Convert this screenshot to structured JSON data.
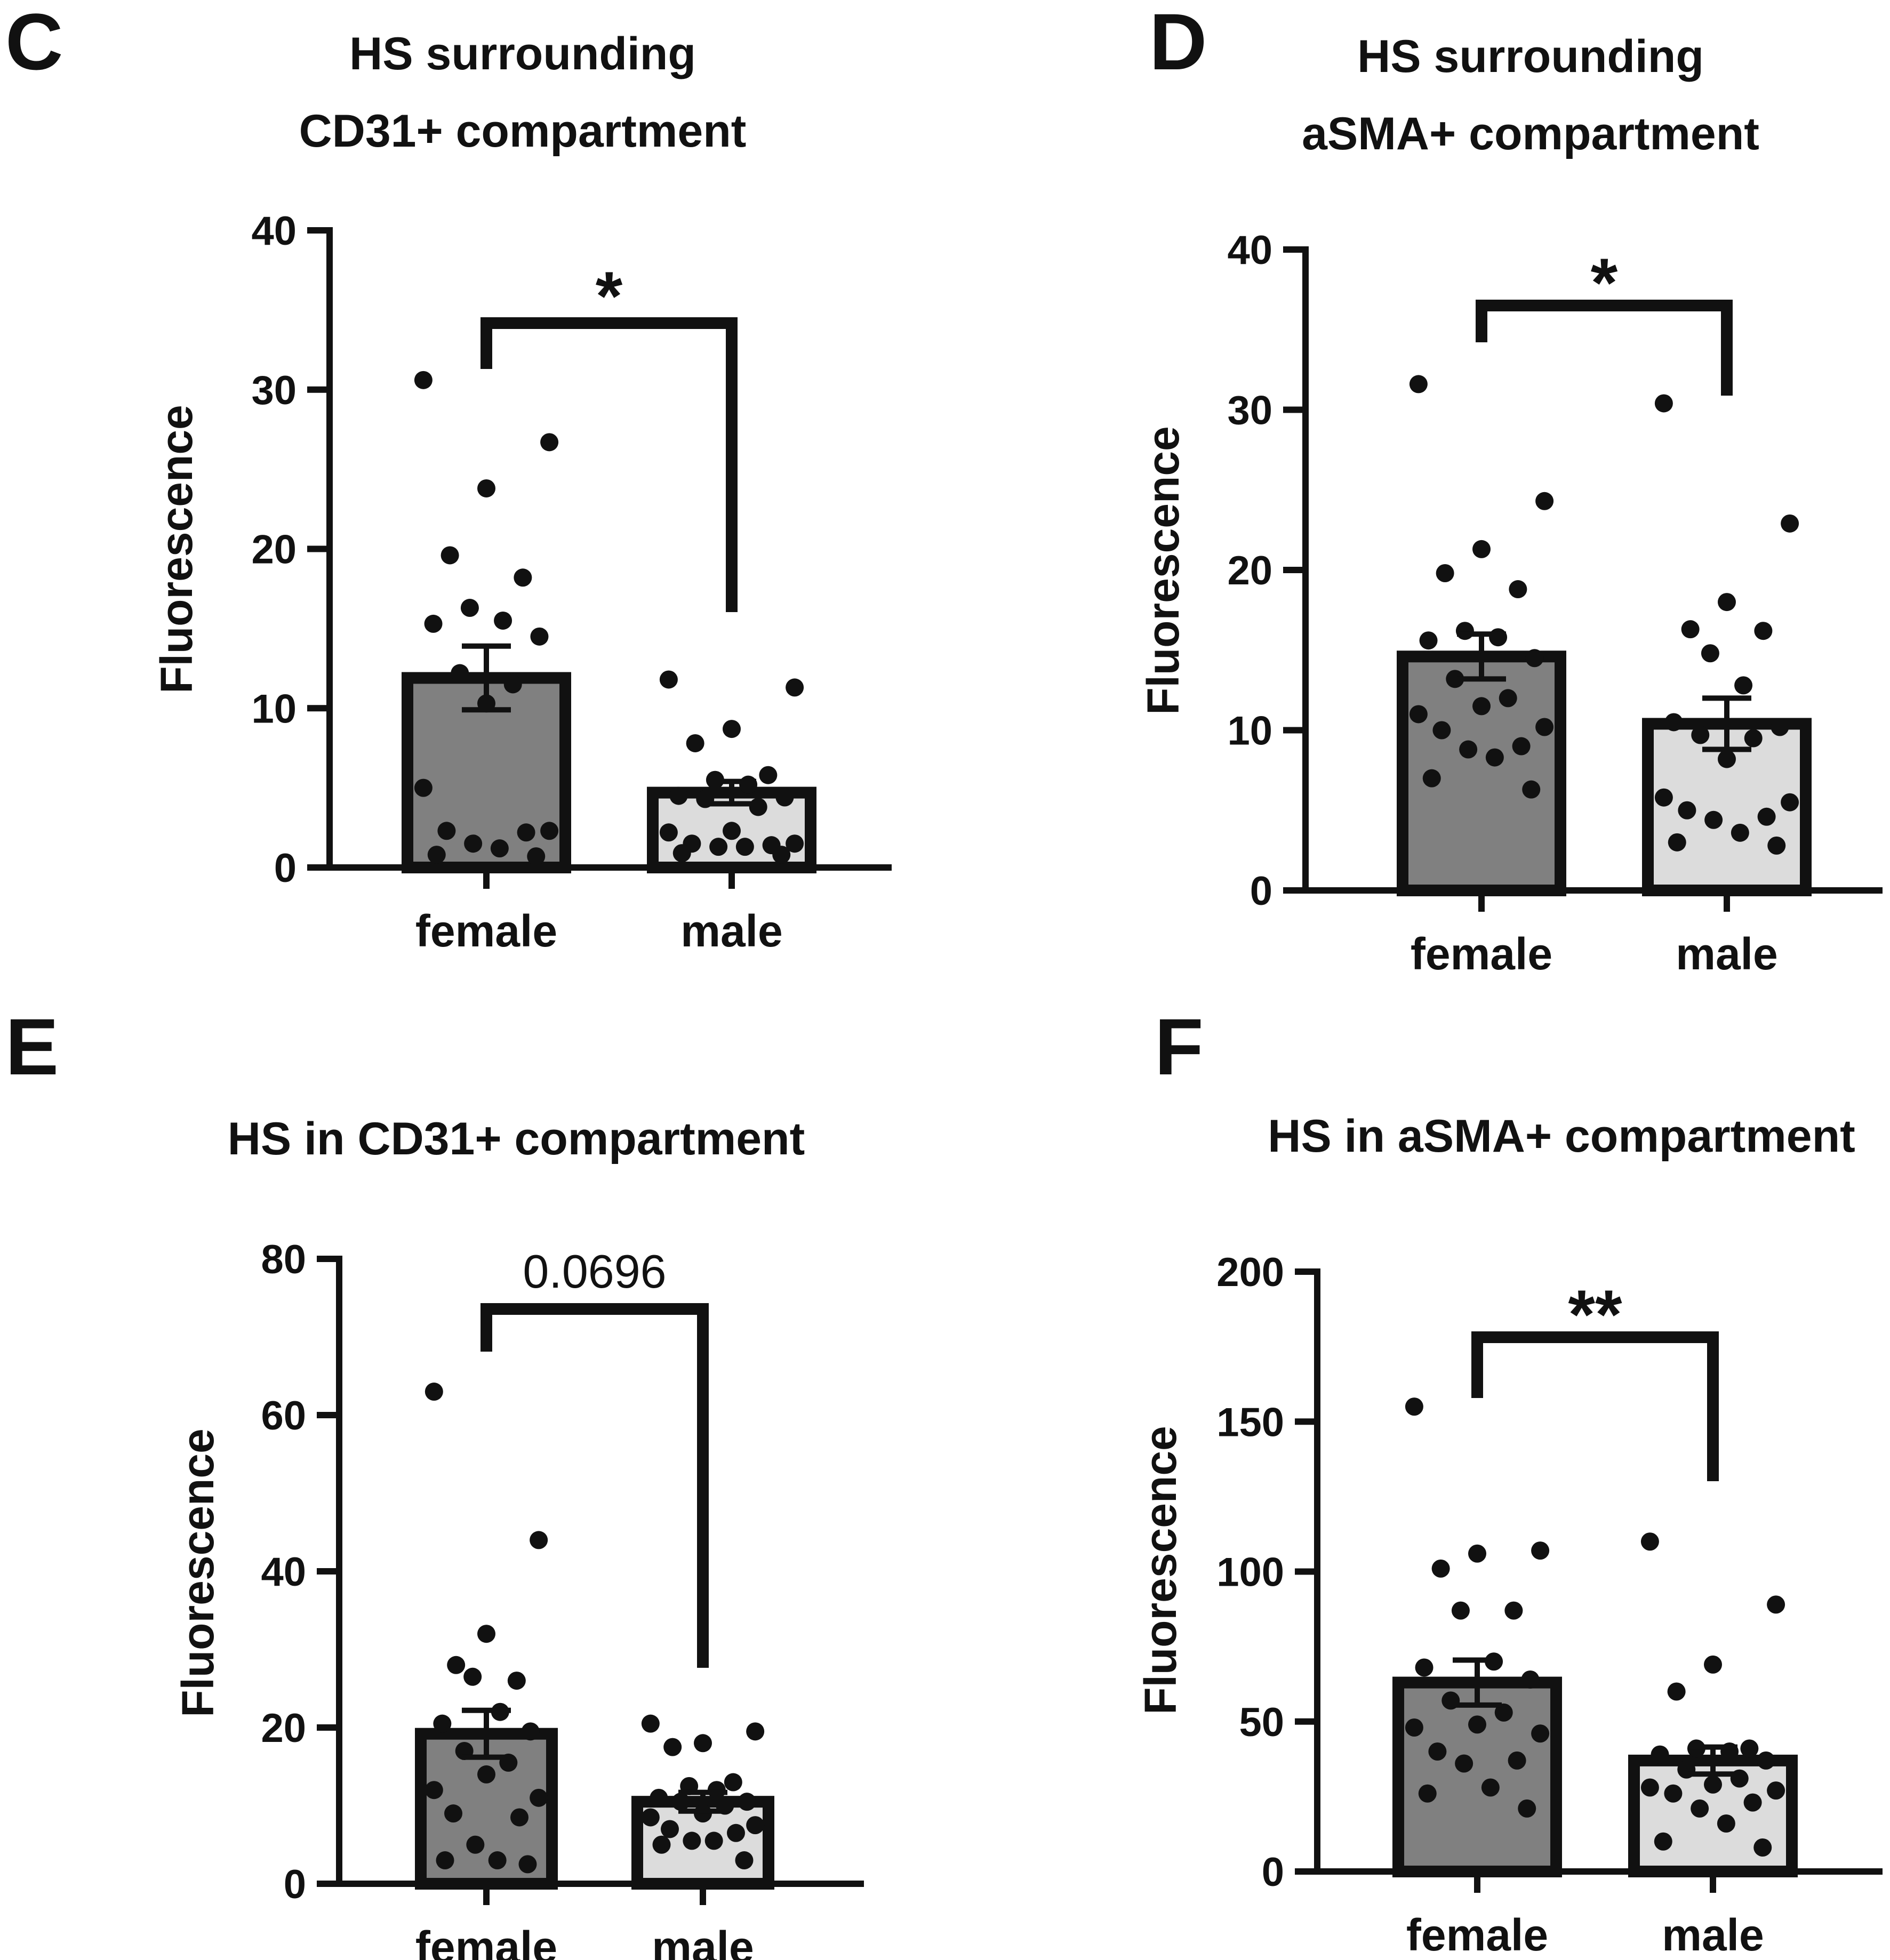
{
  "chart_data": [
    {
      "panel": "C",
      "type": "bar",
      "title": [
        "HS surrounding",
        "CD31+ compartment"
      ],
      "xlabel": "",
      "ylabel": "Fluorescence",
      "ylim": [
        0,
        40
      ],
      "yticks": [
        0,
        10,
        20,
        30,
        40
      ],
      "categories": [
        "female",
        "male"
      ],
      "values": [
        11.9,
        4.7
      ],
      "sem": [
        2.0,
        0.7
      ],
      "bar_colors": [
        "#808080",
        "#dcdcdc"
      ],
      "points": [
        [
          30.6,
          26.7,
          23.8,
          19.6,
          18.2,
          16.3,
          15.5,
          15.3,
          14.5,
          12.2,
          11.5,
          10.3,
          5.0,
          2.3,
          2.3,
          2.2,
          1.5,
          1.2,
          0.8,
          0.7
        ],
        [
          11.8,
          11.3,
          8.7,
          7.8,
          5.8,
          5.5,
          5.2,
          4.5,
          4.4,
          4.3,
          3.8,
          2.3,
          2.2,
          1.5,
          1.5,
          1.4,
          1.3,
          1.3,
          0.9,
          0.8
        ]
      ],
      "significance": "*"
    },
    {
      "panel": "D",
      "type": "bar",
      "title": [
        "HS surrounding",
        "aSMA+ compartment"
      ],
      "xlabel": "",
      "ylabel": "Fluorescence",
      "ylim": [
        0,
        40
      ],
      "yticks": [
        0,
        10,
        20,
        30,
        40
      ],
      "categories": [
        "female",
        "male"
      ],
      "values": [
        14.6,
        10.4
      ],
      "sem": [
        1.4,
        1.6
      ],
      "bar_colors": [
        "#808080",
        "#dcdcdc"
      ],
      "points": [
        [
          31.6,
          24.3,
          21.3,
          19.8,
          18.8,
          16.2,
          15.8,
          15.6,
          14.5,
          13.2,
          12.0,
          11.5,
          11.0,
          10.2,
          10.0,
          9.0,
          8.8,
          8.3,
          7.0,
          6.3
        ],
        [
          30.4,
          22.9,
          18.0,
          16.3,
          16.2,
          14.8,
          12.8,
          10.5,
          10.2,
          9.7,
          9.5,
          8.2,
          5.8,
          5.5,
          5.0,
          4.6,
          4.4,
          3.6,
          3.0,
          2.8
        ]
      ],
      "significance": "*"
    },
    {
      "panel": "E",
      "type": "bar",
      "title": [
        "HS in CD31+ compartment"
      ],
      "xlabel": "",
      "ylabel": "Fluorescence",
      "ylim": [
        0,
        80
      ],
      "yticks": [
        0,
        20,
        40,
        60,
        80
      ],
      "categories": [
        "female",
        "male"
      ],
      "values": [
        19.2,
        10.5
      ],
      "sem": [
        3.0,
        1.2
      ],
      "bar_colors": [
        "#808080",
        "#dcdcdc"
      ],
      "points": [
        [
          63.0,
          44.0,
          32.0,
          28.0,
          26.0,
          26.5,
          22.0,
          20.5,
          19.5,
          17.0,
          15.5,
          14.0,
          12.0,
          11.0,
          9.0,
          8.5,
          5.0,
          3.0,
          3.0,
          2.5
        ],
        [
          20.5,
          19.5,
          18.0,
          17.5,
          13.0,
          12.5,
          12.0,
          11.0,
          10.5,
          10.5,
          10.0,
          9.0,
          8.5,
          7.5,
          7.0,
          6.5,
          5.5,
          5.5,
          5.0,
          3.0
        ]
      ],
      "significance": "0.0696"
    },
    {
      "panel": "F",
      "type": "bar",
      "title": [
        "HS in aSMA+ compartment"
      ],
      "xlabel": "",
      "ylabel": "Fluorescence",
      "ylim": [
        0,
        200
      ],
      "yticks": [
        0,
        50,
        100,
        150,
        200
      ],
      "categories": [
        "female",
        "male"
      ],
      "values": [
        63.0,
        37.0
      ],
      "sem": [
        7.5,
        4.5
      ],
      "bar_colors": [
        "#808080",
        "#dcdcdc"
      ],
      "points": [
        [
          155.0,
          107.0,
          106.0,
          101.0,
          87.0,
          87.0,
          70.0,
          68.0,
          64.0,
          57.0,
          53.0,
          49.0,
          48.0,
          46.0,
          40.0,
          37.0,
          36.0,
          28.0,
          26.0,
          21.0
        ],
        [
          110.0,
          89.0,
          69.0,
          60.0,
          41.0,
          41.0,
          40.0,
          39.0,
          37.0,
          34.0,
          31.0,
          29.0,
          28.0,
          27.0,
          26.0,
          23.0,
          21.0,
          16.0,
          10.0,
          8.0
        ]
      ],
      "significance": "**"
    }
  ],
  "colors": {
    "axis": "#111111",
    "bar_female": "#808080",
    "bar_male": "#dcdcdc",
    "points": "#111111"
  }
}
